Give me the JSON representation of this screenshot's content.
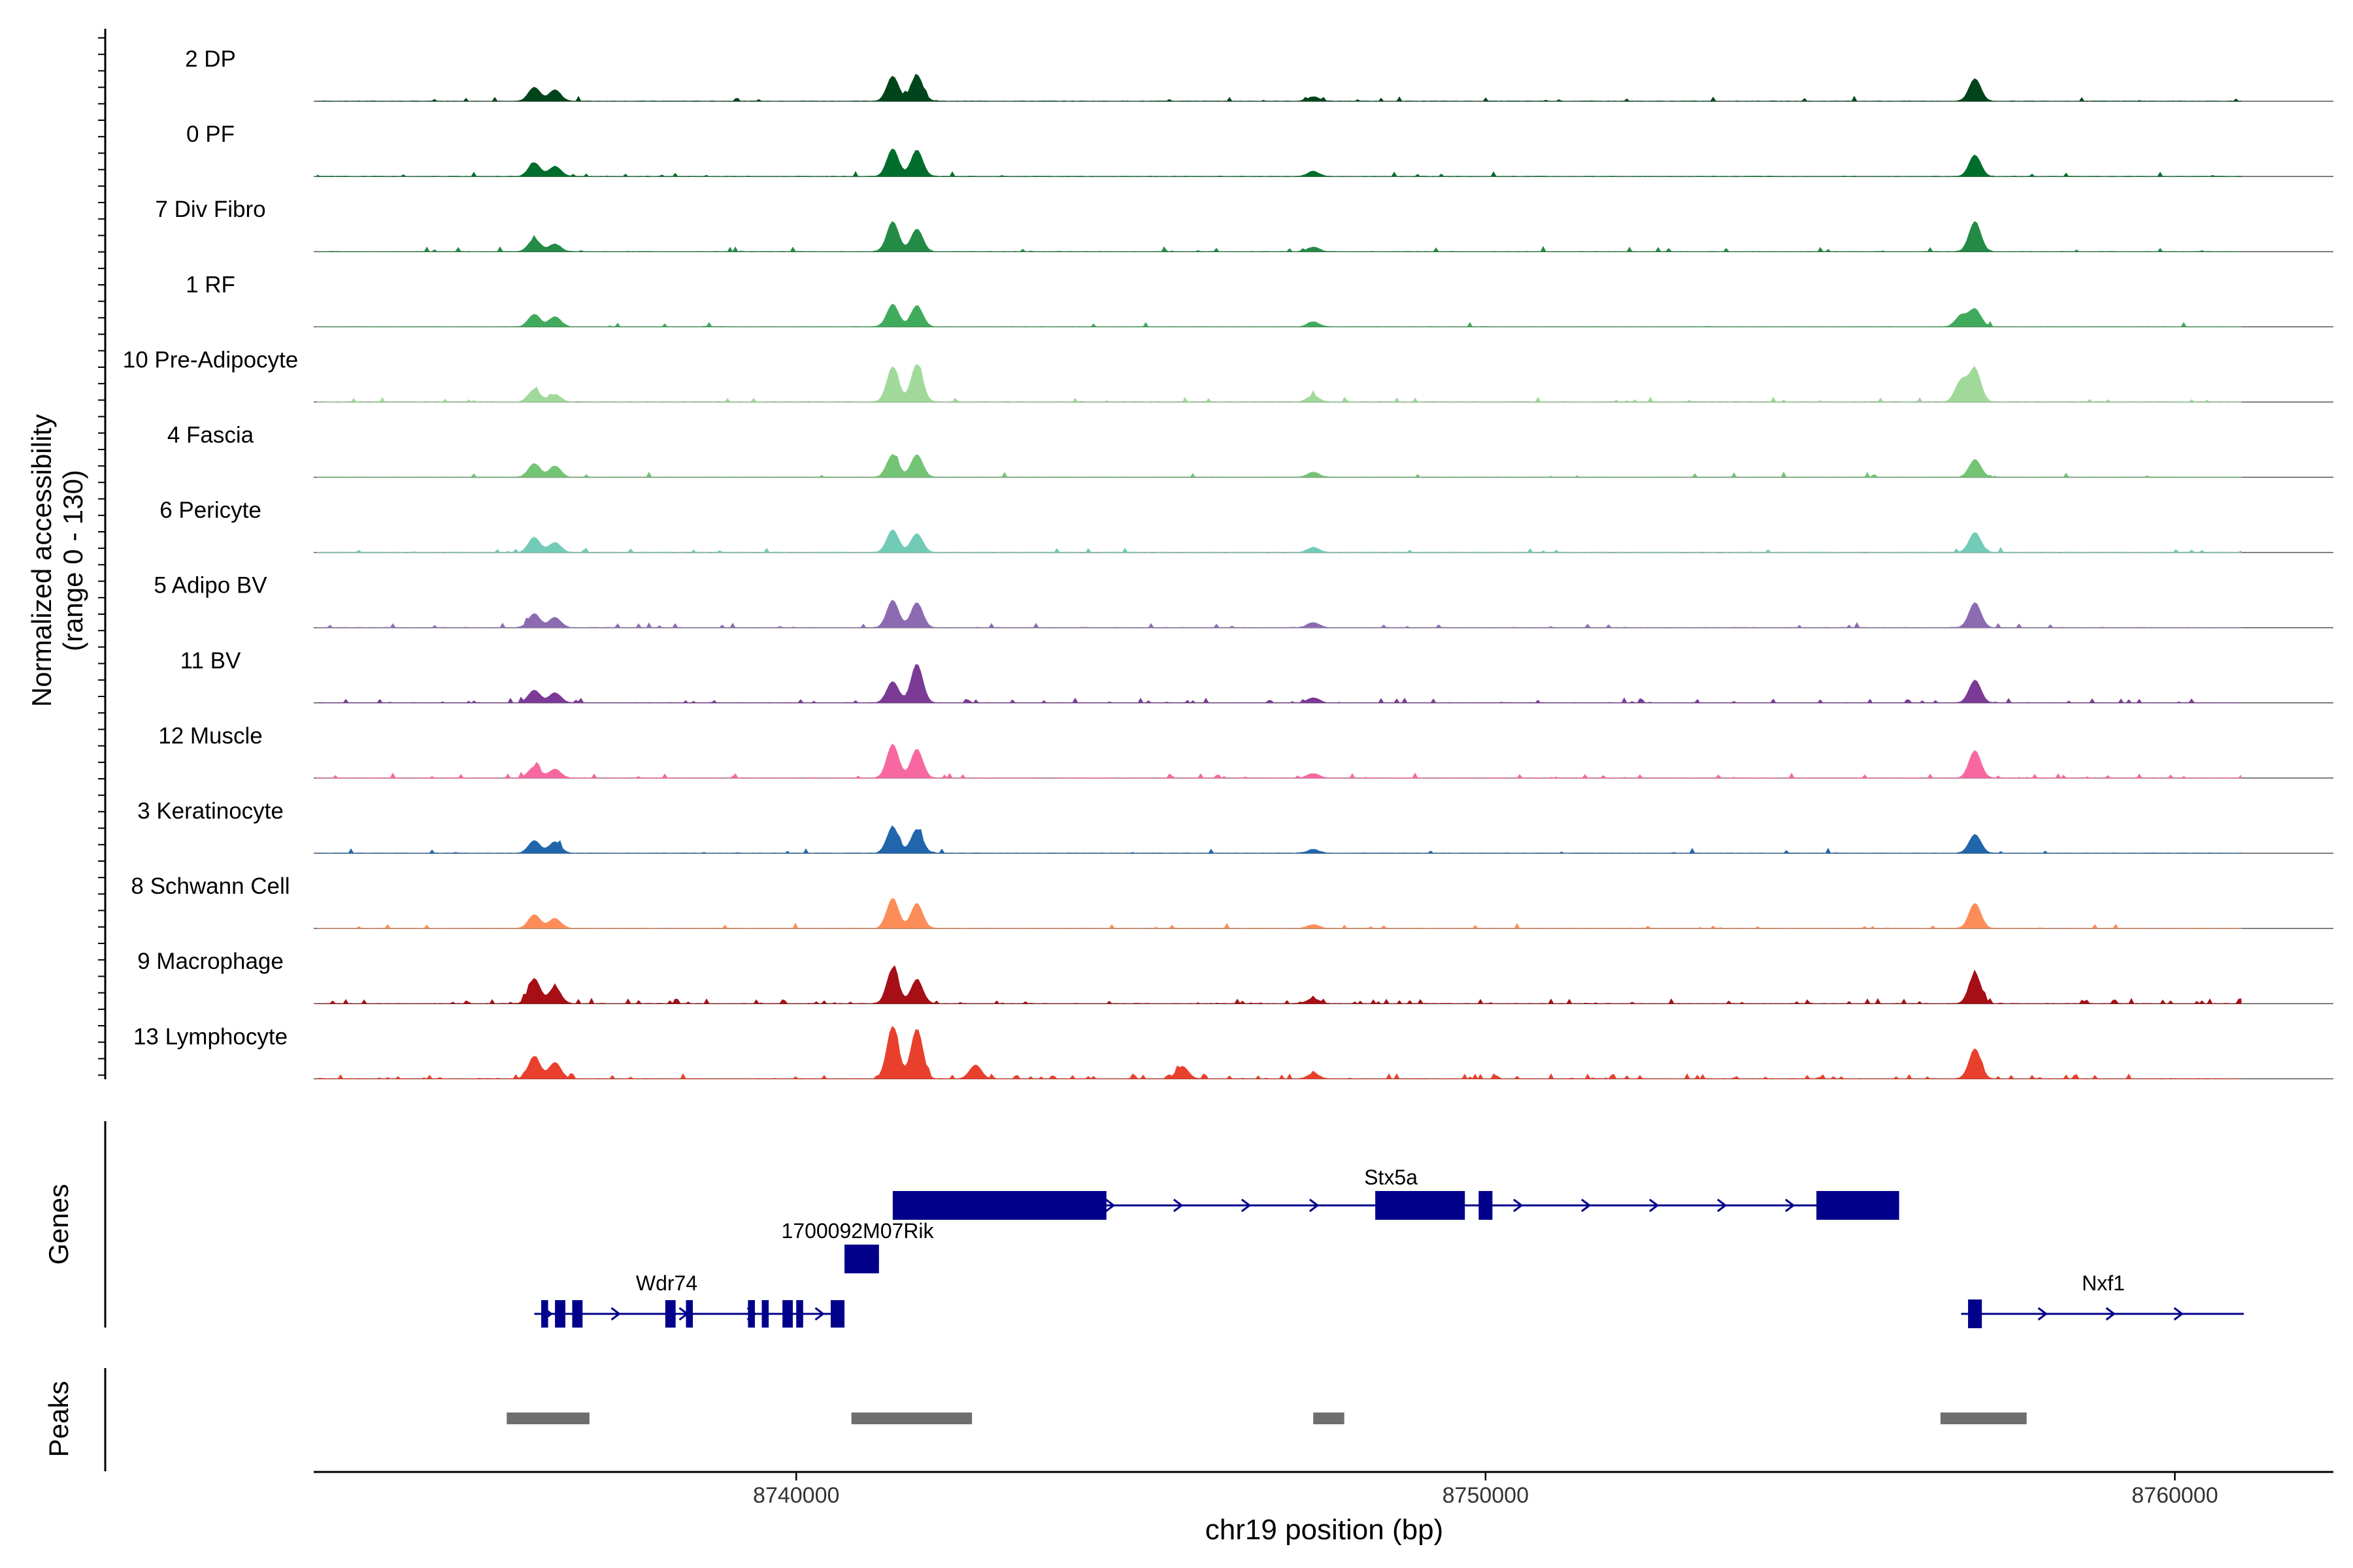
{
  "chart_data": {
    "type": "area",
    "title": "",
    "ylabel_line1": "Normalized accessibility",
    "ylabel_line2": "(range 0 - 130)",
    "xlabel": "chr19 position (bp)",
    "y_range": [
      0,
      130
    ],
    "xlim": [
      8733000,
      8762300
    ],
    "x_ticks": [
      {
        "value": 8740000,
        "label": "8740000"
      },
      {
        "value": 8750000,
        "label": "8750000"
      },
      {
        "value": 8760000,
        "label": "8760000"
      }
    ],
    "tracks_panel_label": "",
    "genes_panel_label": "Genes",
    "peaks_panel_label": "Peaks",
    "tracks": [
      {
        "name": "2 DP",
        "color": "#00441b",
        "peaks": [
          [
            8736200,
            22
          ],
          [
            8736500,
            18
          ],
          [
            8741400,
            40
          ],
          [
            8741750,
            42
          ],
          [
            8747500,
            7
          ],
          [
            8757100,
            36
          ]
        ],
        "noise": 0.03
      },
      {
        "name": "0 PF",
        "color": "#006d2c",
        "peaks": [
          [
            8736200,
            22
          ],
          [
            8736500,
            16
          ],
          [
            8741400,
            44
          ],
          [
            8741750,
            42
          ],
          [
            8747500,
            8
          ],
          [
            8757100,
            34
          ]
        ],
        "noise": 0.03
      },
      {
        "name": "7 Div Fibro",
        "color": "#238b45",
        "peaks": [
          [
            8736200,
            20
          ],
          [
            8736500,
            12
          ],
          [
            8741400,
            48
          ],
          [
            8741750,
            36
          ],
          [
            8747500,
            7
          ],
          [
            8757100,
            48
          ]
        ],
        "noise": 0.05
      },
      {
        "name": "1 RF",
        "color": "#41ab5d",
        "peaks": [
          [
            8736200,
            20
          ],
          [
            8736500,
            16
          ],
          [
            8741400,
            36
          ],
          [
            8741750,
            34
          ],
          [
            8747500,
            8
          ],
          [
            8756900,
            18
          ],
          [
            8757100,
            28
          ]
        ],
        "noise": 0.03
      },
      {
        "name": "10 Pre-Adipocyte",
        "color": "#a1d99b",
        "peaks": [
          [
            8736200,
            20
          ],
          [
            8736500,
            12
          ],
          [
            8741400,
            56
          ],
          [
            8741750,
            60
          ],
          [
            8747500,
            10
          ],
          [
            8756900,
            34
          ],
          [
            8757100,
            52
          ]
        ],
        "noise": 0.06
      },
      {
        "name": "4 Fascia",
        "color": "#74c476",
        "peaks": [
          [
            8736200,
            22
          ],
          [
            8736500,
            18
          ],
          [
            8741400,
            36
          ],
          [
            8741750,
            36
          ],
          [
            8747500,
            8
          ],
          [
            8757100,
            28
          ]
        ],
        "noise": 0.03
      },
      {
        "name": "6 Pericyte",
        "color": "#72cbb7",
        "peaks": [
          [
            8736200,
            24
          ],
          [
            8736500,
            16
          ],
          [
            8741400,
            36
          ],
          [
            8741750,
            30
          ],
          [
            8747500,
            8
          ],
          [
            8757100,
            32
          ]
        ],
        "noise": 0.03
      },
      {
        "name": "5 Adipo BV",
        "color": "#8c6bb1",
        "peaks": [
          [
            8736200,
            22
          ],
          [
            8736500,
            16
          ],
          [
            8741400,
            44
          ],
          [
            8741750,
            40
          ],
          [
            8747500,
            8
          ],
          [
            8757100,
            40
          ]
        ],
        "noise": 0.04
      },
      {
        "name": "11 BV",
        "color": "#7a3a95",
        "peaks": [
          [
            8736200,
            20
          ],
          [
            8736500,
            16
          ],
          [
            8741400,
            34
          ],
          [
            8741750,
            62
          ],
          [
            8747500,
            8
          ],
          [
            8757100,
            36
          ]
        ],
        "noise": 0.1
      },
      {
        "name": "12 Muscle",
        "color": "#f768a1",
        "peaks": [
          [
            8736200,
            18
          ],
          [
            8736500,
            14
          ],
          [
            8741400,
            54
          ],
          [
            8741750,
            46
          ],
          [
            8747500,
            7
          ],
          [
            8757100,
            44
          ]
        ],
        "noise": 0.07
      },
      {
        "name": "3 Keratinocyte",
        "color": "#2166ac",
        "peaks": [
          [
            8736200,
            20
          ],
          [
            8736500,
            18
          ],
          [
            8741400,
            42
          ],
          [
            8741750,
            38
          ],
          [
            8747500,
            6
          ],
          [
            8757100,
            30
          ]
        ],
        "noise": 0.03
      },
      {
        "name": "8 Schwann Cell",
        "color": "#fc8d59",
        "peaks": [
          [
            8736200,
            22
          ],
          [
            8736500,
            16
          ],
          [
            8741400,
            48
          ],
          [
            8741750,
            40
          ],
          [
            8747500,
            6
          ],
          [
            8757100,
            40
          ]
        ],
        "noise": 0.05
      },
      {
        "name": "9 Macrophage",
        "color": "#a50f15",
        "peaks": [
          [
            8736200,
            40
          ],
          [
            8736500,
            26
          ],
          [
            8741400,
            56
          ],
          [
            8741750,
            38
          ],
          [
            8747500,
            8
          ],
          [
            8757100,
            48
          ]
        ],
        "noise": 0.12
      },
      {
        "name": "13 Lymphocyte",
        "color": "#e8402d",
        "peaks": [
          [
            8736200,
            36
          ],
          [
            8736500,
            26
          ],
          [
            8741400,
            84
          ],
          [
            8741750,
            80
          ],
          [
            8742600,
            22
          ],
          [
            8745600,
            20
          ],
          [
            8747500,
            8
          ],
          [
            8757100,
            48
          ]
        ],
        "noise": 0.14
      }
    ],
    "genes": [
      {
        "name": "Stx5a",
        "row": 1,
        "strand": "+",
        "start": 8741400,
        "end": 8756000,
        "exons": [
          [
            8741400,
            8744500
          ],
          [
            8748400,
            8749700
          ],
          [
            8749900,
            8750100
          ],
          [
            8754800,
            8756000
          ]
        ]
      },
      {
        "name": "1700092M07Rik",
        "row": 2,
        "strand": "+",
        "start": 8740700,
        "end": 8741200,
        "exons": [
          [
            8740700,
            8741200
          ]
        ]
      },
      {
        "name": "Wdr74",
        "row": 3,
        "strand": "+",
        "start": 8736200,
        "end": 8740700,
        "exons": [
          [
            8736300,
            8736400
          ],
          [
            8736500,
            8736650
          ],
          [
            8736750,
            8736900
          ],
          [
            8738100,
            8738250
          ],
          [
            8738400,
            8738500
          ],
          [
            8739300,
            8739400
          ],
          [
            8739500,
            8739600
          ],
          [
            8739800,
            8739950
          ],
          [
            8740000,
            8740100
          ],
          [
            8740500,
            8740700
          ]
        ]
      },
      {
        "name": "Nxf1",
        "row": 3,
        "strand": "+",
        "start": 8756900,
        "end": 8761000,
        "exons": [
          [
            8757000,
            8757200
          ]
        ]
      }
    ],
    "peaks": [
      [
        8735800,
        8737000
      ],
      [
        8740800,
        8742550
      ],
      [
        8747500,
        8747950
      ],
      [
        8756600,
        8757850
      ]
    ]
  }
}
